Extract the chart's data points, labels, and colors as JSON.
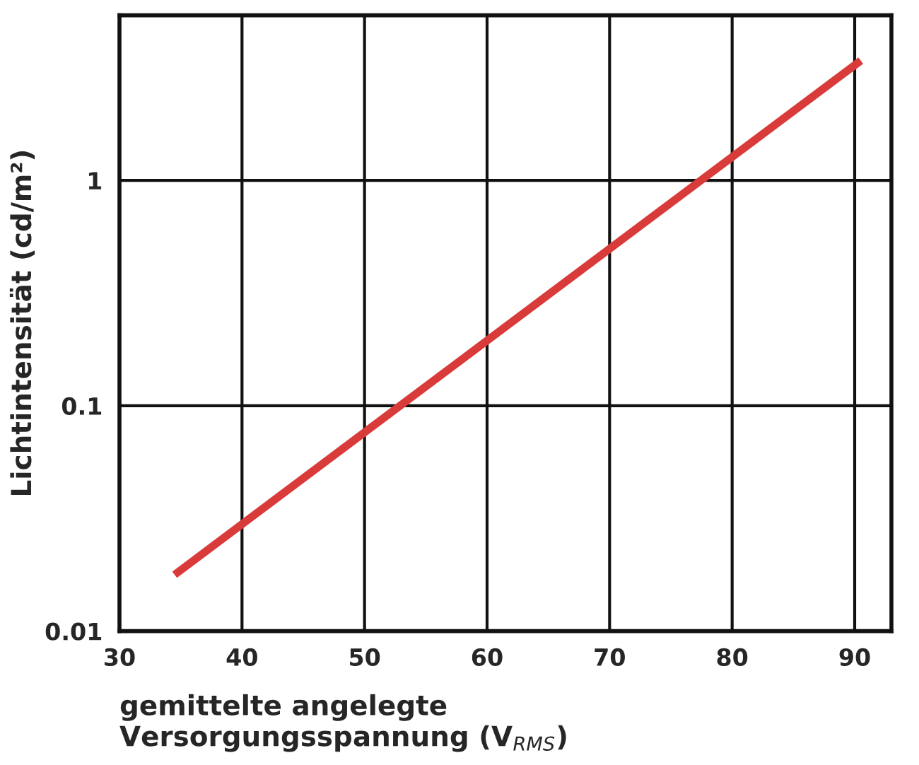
{
  "chart_data": {
    "type": "line",
    "xlabel": "gemittelte angelegte\nVersorgungsspannung (V$_{RMS}$)",
    "ylabel": "Lichtintensität (cd/m²)",
    "x": [
      34.5,
      90.5
    ],
    "series": [
      {
        "color": "#d93a3a",
        "values": [
          0.0178,
          3.4
        ]
      }
    ],
    "log": "y",
    "grid": true,
    "xlim": [
      30,
      93
    ],
    "xticks": [
      30,
      40,
      50,
      60,
      70,
      80,
      90
    ],
    "ylim": [
      0.01,
      5.4
    ],
    "yticks": [
      0.01,
      0.1,
      1
    ]
  }
}
